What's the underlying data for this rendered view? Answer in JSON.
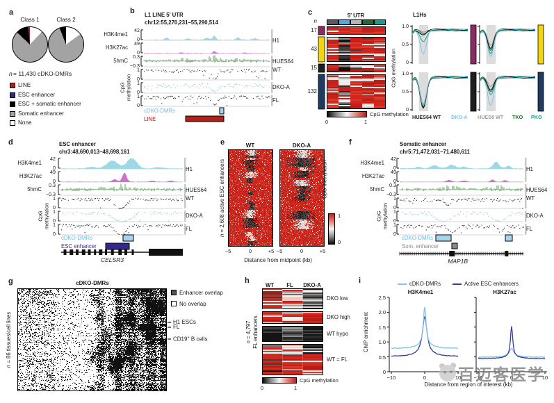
{
  "panels": {
    "a": {
      "letter": "a",
      "pies": [
        {
          "title": "Class 1",
          "slices": [
            {
              "name": "None",
              "pct": 12,
              "color": "#ffffff"
            },
            {
              "name": "Somatic enhancer",
              "pct": 75,
              "color": "#a3a3a3"
            },
            {
              "name": "ESC + somatic enhancer",
              "pct": 11,
              "color": "#000000"
            },
            {
              "name": "ESC enhancer",
              "pct": 1,
              "color": "#35288c"
            },
            {
              "name": "LINE",
              "pct": 1,
              "color": "#b02018"
            }
          ]
        },
        {
          "title": "Class 2",
          "slices": [
            {
              "name": "None",
              "pct": 15,
              "color": "#ffffff"
            },
            {
              "name": "Somatic enhancer",
              "pct": 79,
              "color": "#a3a3a3"
            },
            {
              "name": "ESC + somatic enhancer",
              "pct": 6,
              "color": "#000000"
            }
          ]
        }
      ],
      "caption_n": "n",
      "caption": " = 11,430 cDKO-DMRs",
      "legend": [
        {
          "label": "LINE",
          "color": "#b02018"
        },
        {
          "label": "ESC enhancer",
          "color": "#35288c"
        },
        {
          "label": "ESC + somatic enhancer",
          "color": "#000000"
        },
        {
          "label": "Somatic enhancer",
          "color": "#a3a3a3"
        },
        {
          "label": "None",
          "color": "#ffffff"
        }
      ]
    },
    "b": {
      "letter": "b",
      "title": "L1 LINE 5′ UTR",
      "region": "chr12:55,270,231–55,290,514",
      "left_labels": [
        "H3K4me1",
        "H3K27ac",
        "5hmC"
      ],
      "cpg_axis_1": "CpG",
      "cpg_axis_2": "methylation",
      "scales": [
        "42",
        "0",
        "49",
        "0",
        "0.3",
        "−0.3",
        "1",
        "0",
        "1",
        "0",
        "1",
        "0"
      ],
      "right_labels": [
        "H1",
        "HUES64",
        "WT",
        "DKO-A",
        "FL"
      ],
      "annotations": [
        {
          "label": "cDKO-DMRs",
          "color": "#6fbce4"
        },
        {
          "label": "LINE",
          "color": "#b02018"
        }
      ]
    },
    "c": {
      "letter": "c",
      "n_header": "n",
      "title": "5′ UTR",
      "header_colors": [
        "#5a5a5a",
        "#58a7d8",
        "#b5b5b5",
        "#1f6b33",
        "#15a08e"
      ],
      "clusters": [
        {
          "n": "17",
          "color": "#8c2a64"
        },
        {
          "n": "43",
          "color": "#f2d411"
        },
        {
          "n": "15",
          "color": "#1f1f1f"
        },
        {
          "n": "132",
          "color": "#1e3c63"
        }
      ],
      "colorbar_label": "CpG methylation",
      "colorbar_ticks": [
        "0",
        "1"
      ],
      "plots_title": "L1Hs",
      "yaxis": "CpG methylation",
      "yticks": [
        "1.0",
        "0.5",
        "0"
      ],
      "legend": [
        {
          "label": "HUES64 WT",
          "color": "#1a1a1a"
        },
        {
          "label": "DKO-A",
          "color": "#7fc4e8"
        },
        {
          "label": "HUES8 WT",
          "color": "#9a9a9a"
        },
        {
          "label": "TKO",
          "color": "#1f6b33"
        },
        {
          "label": "PKO",
          "color": "#15a08e"
        }
      ]
    },
    "d": {
      "letter": "d",
      "title": "ESC enhancer",
      "region": "chr3:48,690,013–48,698,161",
      "left_labels": [
        "H3K4me1",
        "H3K27ac",
        "5hmC"
      ],
      "cpg_axis_1": "CpG",
      "cpg_axis_2": "methylation",
      "scales": [
        "42",
        "0",
        "49",
        "0",
        "0.3",
        "−0.3",
        "1",
        "0",
        "1",
        "0",
        "1",
        "0"
      ],
      "right_labels": [
        "H1",
        "HUES64",
        "WT",
        "DKO-A",
        "FL"
      ],
      "annotations": [
        {
          "label": "cDKO-DMRs",
          "color": "#6fbce4"
        },
        {
          "label": "ESC enhancer",
          "color": "#35288c"
        }
      ],
      "gene": "CELSR3"
    },
    "e": {
      "letter": "e",
      "titles": [
        "WT",
        "DKO-A"
      ],
      "ylabel_n": "n",
      "ylabel": " = 2,608 active ESC enhancers",
      "xticks": [
        "−5",
        "0",
        "+5"
      ],
      "xlabel": "Distance from midpoint (kb)",
      "colorbar_label": "CpG methylation",
      "colorbar_ticks": [
        "1",
        "0"
      ]
    },
    "f": {
      "letter": "f",
      "title": "Somatic enhancer",
      "region": "chr5:71,472,031–71,480,611",
      "left_labels": [
        "H3K4me1",
        "H3K27ac",
        "5hmC"
      ],
      "cpg_axis_1": "CpG",
      "cpg_axis_2": "methylation",
      "scales": [
        "42",
        "0",
        "49",
        "0",
        "0.3",
        "−0.3",
        "1",
        "0",
        "1",
        "0",
        "1",
        "0"
      ],
      "right_labels": [
        "H1",
        "HUES64",
        "WT",
        "DKO-A",
        "FL"
      ],
      "annotations": [
        {
          "label": "cDKO-DMRs",
          "color": "#6fbce4"
        },
        {
          "label": "Som. enhancer",
          "color": "#8a8a8a"
        }
      ],
      "gene": "MAP1B"
    },
    "g": {
      "letter": "g",
      "title": "cDKO-DMRs",
      "ylabel_n": "n",
      "ylabel": " = 86 tissues/cell lines",
      "legend": [
        {
          "label": "Enhancer overlap",
          "color": "#555555"
        },
        {
          "label": "No overlap",
          "color": "#ffffff"
        }
      ],
      "row_labels": [
        {
          "pre": "H1 ESCs",
          "sup": "",
          "post": ""
        },
        {
          "pre": "FL",
          "sup": "",
          "post": ""
        },
        {
          "pre": "CD19",
          "sup": "+",
          "post": " B cells"
        }
      ]
    },
    "h": {
      "letter": "h",
      "columns": [
        "WT",
        "FL",
        "DKO-A"
      ],
      "groups": [
        "DKO low",
        "DKO high",
        "WT hypo",
        "WT = FL"
      ],
      "ylabel_n": "n",
      "ylabel1": " = 4,797",
      "ylabel2": "FL enhancers",
      "colorbar_label": "CpG methylation",
      "colorbar_ticks": [
        "0",
        "1"
      ]
    },
    "i": {
      "letter": "i",
      "legend": [
        {
          "label": "cDKO-DMRs",
          "color": "#7fc4e8"
        },
        {
          "label": "Active ESC enhancers",
          "color": "#3a3a9c"
        }
      ],
      "titles": [
        "H3K4me1",
        "H3K27ac"
      ],
      "ylabel": "ChIP enrichment",
      "yticks": [
        "0",
        "0.5",
        "1.0",
        "1.5",
        "2.0",
        "2.5"
      ],
      "xticks": [
        "−10",
        "0",
        "10"
      ],
      "xlabel": "Distance from region of interest (kb)",
      "curves": {
        "H3K4me1": [
          {
            "series": "cDKO-DMRs",
            "baseline": 0.8,
            "peak": 2.18
          },
          {
            "series": "Active ESC enhancers",
            "baseline": 0.52,
            "peak": 1.85
          }
        ],
        "H3K27ac": [
          {
            "series": "cDKO-DMRs",
            "baseline": 0.5,
            "peak": 0.78
          },
          {
            "series": "Active ESC enhancers",
            "baseline": 0.44,
            "peak": 1.52
          }
        ]
      }
    }
  },
  "watermark": {
    "text": "百迈客医学"
  },
  "chart_data": [
    {
      "type": "pie",
      "title": "Class 1",
      "categories": [
        "LINE",
        "ESC enhancer",
        "ESC + somatic enhancer",
        "Somatic enhancer",
        "None"
      ],
      "values": [
        1,
        1,
        11,
        75,
        12
      ]
    },
    {
      "type": "pie",
      "title": "Class 2",
      "categories": [
        "LINE",
        "ESC enhancer",
        "ESC + somatic enhancer",
        "Somatic enhancer",
        "None"
      ],
      "values": [
        0,
        0,
        6,
        79,
        15
      ]
    },
    {
      "type": "line",
      "title": "H3K4me1",
      "xlabel": "Distance from region of interest (kb)",
      "ylabel": "ChIP enrichment",
      "ylim": [
        0,
        2.5
      ],
      "series": [
        {
          "name": "cDKO-DMRs",
          "baseline": 0.8,
          "peak_at_0": 2.18
        },
        {
          "name": "Active ESC enhancers",
          "baseline": 0.52,
          "peak_at_0": 1.85
        }
      ]
    },
    {
      "type": "line",
      "title": "H3K27ac",
      "xlabel": "Distance from region of interest (kb)",
      "ylabel": "ChIP enrichment",
      "ylim": [
        0,
        2.5
      ],
      "series": [
        {
          "name": "cDKO-DMRs",
          "baseline": 0.5,
          "peak_at_0": 0.78
        },
        {
          "name": "Active ESC enhancers",
          "baseline": 0.44,
          "peak_at_0": 1.52
        }
      ]
    }
  ]
}
